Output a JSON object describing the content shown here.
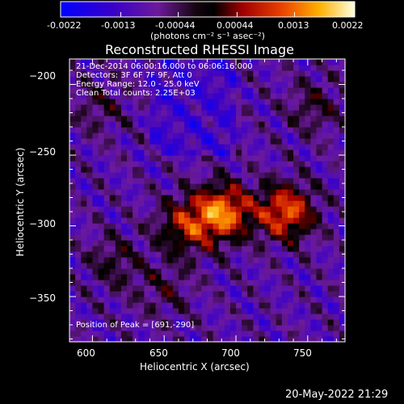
{
  "colorbar": {
    "ticks": [
      "-0.0022",
      "-0.0013",
      "-0.00044",
      "0.00044",
      "0.0013",
      "0.0022"
    ],
    "unit_label": "(photons cm⁻² s⁻¹ asec⁻²)",
    "range": [
      -0.0022,
      0.0022
    ]
  },
  "chart_data": {
    "type": "heatmap",
    "title": "Reconstructed RHESSI Image",
    "xlabel": "Heliocentric X (arcsec)",
    "ylabel": "Heliocentric Y (arcsec)",
    "xlim": [
      584,
      776
    ],
    "ylim": [
      -382,
      -182
    ],
    "xticks": [
      600,
      650,
      700,
      750
    ],
    "yticks": [
      -200,
      -250,
      -300,
      -350
    ],
    "info_lines": [
      "21-Dec-2014 06:00:16.000 to 06:06:16.000",
      "Detectors: 3F 6F 7F 9F, Att 0",
      "Energy Range: 12.0 - 25.0 keV",
      "Clean     Total counts: 2.25E+03"
    ],
    "peak_label": "Position of Peak = [691,-290]",
    "peak": [
      691,
      -290
    ],
    "sources": [
      {
        "x": 691,
        "y": -290,
        "intensity": 0.0022
      },
      {
        "x": 735,
        "y": -290,
        "intensity": 0.002
      },
      {
        "x": 665,
        "y": -300,
        "intensity": 0.0014
      },
      {
        "x": 615,
        "y": -325,
        "intensity": 0.0007
      },
      {
        "x": 650,
        "y": -345,
        "intensity": 0.0006
      },
      {
        "x": 605,
        "y": -215,
        "intensity": 0.0006
      },
      {
        "x": 755,
        "y": -215,
        "intensity": 0.0007
      }
    ],
    "colormap": [
      "#0000ff",
      "#4b00b4",
      "#6c1a9c",
      "#000000",
      "#9a0000",
      "#e43a00",
      "#ffa000",
      "#ffff9a",
      "#ffffff"
    ]
  },
  "timestamp": "20-May-2022 21:29"
}
